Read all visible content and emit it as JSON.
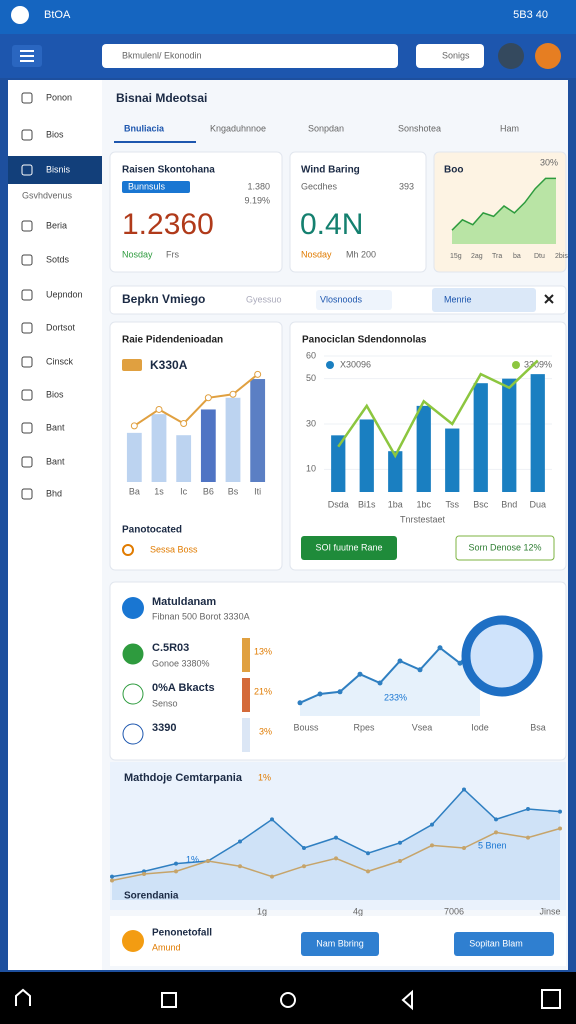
{
  "status_bar": {
    "left": "BtOA",
    "right": "5B3 40"
  },
  "app_bar": {
    "search": "Bkmulenl/ Ekonodin",
    "button": "Sonigs"
  },
  "sidebar": {
    "items": [
      "Ponon",
      "Bios",
      "Bisnis",
      "Beria",
      "Sotds",
      "Uepndon",
      "Dortsot",
      "Cinsck",
      "Bios",
      "Bant",
      "Bant",
      "Bhd"
    ],
    "subtitle": "Gsvhdvenus"
  },
  "header": {
    "title": "Bisnai Mdeotsai",
    "tabs": [
      "Bnuliacia",
      "Kngaduhnnoe",
      "Sonpdan",
      "Sonshotea",
      "Ham"
    ]
  },
  "cards": [
    {
      "title": "Raisen Skontohana",
      "badge": "Bunnsuls",
      "stat": "1.380",
      "change": "9.19%",
      "value": "1.2360",
      "label": "Nosday",
      "note": "Frs"
    },
    {
      "title": "Wind Baring",
      "sub": "Gecdhes",
      "stat": "393",
      "value": "0.4N",
      "label": "Nosday",
      "note": "Mh 200"
    }
  ],
  "trend_card": {
    "title": "Boo",
    "badge": "30%",
    "values": [
      20,
      35,
      28,
      45,
      40,
      55,
      45,
      60,
      80,
      95,
      95
    ],
    "ylim": [
      0,
      110
    ],
    "x_labels": [
      "15g",
      "2ag",
      "Tra",
      "ba",
      "Dtu",
      "2bis"
    ]
  },
  "filter_bar": {
    "title": "Bepkn Vmiego",
    "option_1": "Gyessuo",
    "option_2": "Vlosnoods",
    "option_3": "Menrie"
  },
  "chart_a": {
    "type": "bar",
    "title": "Raie Pidendenioadan",
    "legend": "K330A",
    "categories": [
      "Ba",
      "1s",
      "Ic",
      "B6",
      "Bs",
      "Iti"
    ],
    "ylim": [
      0,
      100
    ],
    "bar_colors": [
      "#bcd3f0",
      "#bcd3f0",
      "#bcd3f0",
      "#4f74c4",
      "#bcd3f0",
      "#5b7fc4"
    ],
    "bars": [
      42,
      58,
      40,
      62,
      72,
      88
    ],
    "line": {
      "color": "#e0a040",
      "values": [
        48,
        62,
        50,
        72,
        75,
        92
      ]
    },
    "footer": "Panotocated",
    "footer_note": "Sessa Boss"
  },
  "chart_b": {
    "type": "bar",
    "title": "Panociclan Sdendonnolas",
    "categories": [
      "Dsda",
      "Bi1s",
      "1ba",
      "1bc",
      "Tss",
      "Bsc",
      "Bnd",
      "Dua"
    ],
    "ylim": [
      0,
      60
    ],
    "yticks": [
      10,
      30,
      50,
      60
    ],
    "series": [
      {
        "name": "X30096",
        "color": "#1a7fc1",
        "values": [
          25,
          32,
          18,
          38,
          28,
          48,
          50,
          52
        ]
      },
      {
        "name": "3309%",
        "color": "#8cc63f",
        "values": [
          20,
          38,
          16,
          40,
          30,
          52,
          46,
          58
        ]
      }
    ],
    "footer": "Tnrstestaet",
    "button_1": "SOI fuutne Rane",
    "button_2": "Sorn Denose 12%"
  },
  "section_3": {
    "title": "Matuldanam",
    "subtitle": "Fibnan 500 Borot 3330A",
    "items": [
      {
        "value": "C.5R03",
        "note": "Gonoe 3380%",
        "pct": "13%"
      },
      {
        "value": "0%A Bkacts",
        "note": "Senso",
        "pct": "21%"
      },
      {
        "value": "3390",
        "note": "",
        "pct": "3%"
      }
    ],
    "chart": {
      "type": "line",
      "values": [
        12,
        20,
        22,
        38,
        30,
        50,
        42,
        62,
        48,
        70
      ],
      "ylim": [
        0,
        80
      ],
      "x_labels": [
        "Bouss",
        "Rpes",
        "Vsea",
        "Iode",
        "Bsa"
      ],
      "note": "233%"
    }
  },
  "section_4": {
    "title": "Mathdoje Cemtarpania",
    "badge": "1%",
    "label": "Sorendania",
    "note_1": "1%",
    "note_2": "5 Bnen",
    "chart": {
      "type": "line",
      "ylim": [
        0,
        100
      ],
      "x_labels": [
        "1g",
        "4g",
        "7006",
        "Jinse"
      ],
      "series": [
        {
          "color": "#2f7fc1",
          "values": [
            18,
            22,
            28,
            30,
            45,
            62,
            40,
            48,
            36,
            44,
            58,
            85,
            62,
            70,
            68
          ]
        },
        {
          "color": "#c6a46a",
          "values": [
            15,
            20,
            22,
            30,
            26,
            18,
            26,
            32,
            22,
            30,
            42,
            40,
            52,
            48,
            55
          ]
        }
      ]
    }
  },
  "footer": {
    "title": "Penonetofall",
    "sub": "Amund",
    "button_1": "Nam Bbring",
    "button_2": "Sopitan Blam"
  }
}
